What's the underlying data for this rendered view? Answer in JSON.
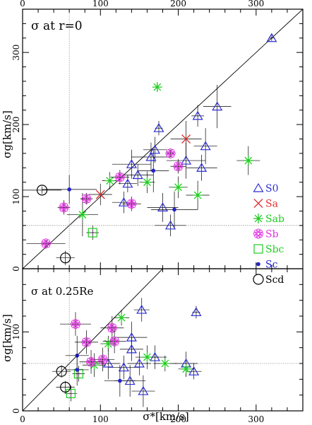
{
  "chart_data": [
    {
      "type": "scatter",
      "panel": "top",
      "annotation": "σ at r=0",
      "ylabel": "σg[km/s]",
      "xlim": [
        0,
        360
      ],
      "ylim": [
        0,
        360
      ],
      "x_ticks": [
        "0",
        "100",
        "200",
        "300"
      ],
      "y_ticks": [
        "0",
        "100",
        "200",
        "300"
      ],
      "reference_lines": {
        "diagonal": "y=x",
        "vertical_x": 60,
        "horizontal_y": 60
      },
      "legend": {
        "position": "right",
        "entries": [
          {
            "label": "S0",
            "marker": "triangle",
            "color": "#2d2dd4"
          },
          {
            "label": "Sa",
            "marker": "cross",
            "color": "#e03030"
          },
          {
            "label": "Sab",
            "marker": "asterisk",
            "color": "#22cc22"
          },
          {
            "label": "Sb",
            "marker": "flower",
            "color": "#e030e0"
          },
          {
            "label": "Sbc",
            "marker": "square",
            "color": "#22cc22"
          },
          {
            "label": "Sc",
            "marker": "dot",
            "color": "#2222cc"
          },
          {
            "label": "Scd",
            "marker": "circle",
            "color": "#000000"
          }
        ]
      },
      "points": [
        {
          "cls": "S0",
          "x": 320,
          "y": 320,
          "xe": 4,
          "ye": 4
        },
        {
          "cls": "S0",
          "x": 250,
          "y": 225,
          "xe": 18,
          "ye": 30
        },
        {
          "cls": "S0",
          "x": 225,
          "y": 212,
          "xe": 8,
          "ye": 15
        },
        {
          "cls": "S0",
          "x": 235,
          "y": 170,
          "xe": 15,
          "ye": 25
        },
        {
          "cls": "S0",
          "x": 210,
          "y": 150,
          "xe": 25,
          "ye": 25
        },
        {
          "cls": "S0",
          "x": 230,
          "y": 140,
          "xe": 20,
          "ye": 18
        },
        {
          "cls": "S0",
          "x": 175,
          "y": 195,
          "xe": 5,
          "ye": 10
        },
        {
          "cls": "S0",
          "x": 170,
          "y": 165,
          "xe": 15,
          "ye": 18
        },
        {
          "cls": "S0",
          "x": 165,
          "y": 155,
          "xe": 25,
          "ye": 20
        },
        {
          "cls": "S0",
          "x": 140,
          "y": 145,
          "xe": 25,
          "ye": 20
        },
        {
          "cls": "S0",
          "x": 148,
          "y": 130,
          "xe": 20,
          "ye": 15
        },
        {
          "cls": "S0",
          "x": 135,
          "y": 118,
          "xe": 12,
          "ye": 12
        },
        {
          "cls": "S0",
          "x": 130,
          "y": 92,
          "xe": 15,
          "ye": 15
        },
        {
          "cls": "S0",
          "x": 180,
          "y": 85,
          "xe": 20,
          "ye": 20
        },
        {
          "cls": "S0",
          "x": 190,
          "y": 60,
          "xe": 20,
          "ye": 15
        },
        {
          "cls": "Sa",
          "x": 210,
          "y": 180,
          "xe": 20,
          "ye": 25
        },
        {
          "cls": "Sa",
          "x": 100,
          "y": 103,
          "xe": 15,
          "ye": 15
        },
        {
          "cls": "Sab",
          "x": 173,
          "y": 252,
          "xe": 5,
          "ye": 5
        },
        {
          "cls": "Sab",
          "x": 290,
          "y": 150,
          "xe": 15,
          "ye": 20
        },
        {
          "cls": "Sab",
          "x": 225,
          "y": 102,
          "xe": 15,
          "ye": 20
        },
        {
          "cls": "Sab",
          "x": 200,
          "y": 113,
          "xe": 12,
          "ye": 15
        },
        {
          "cls": "Sab",
          "x": 112,
          "y": 122,
          "xe": 10,
          "ye": 12
        },
        {
          "cls": "Sab",
          "x": 77,
          "y": 75,
          "xe": 20,
          "ye": 30
        },
        {
          "cls": "Sab",
          "x": 160,
          "y": 120,
          "xe": 10,
          "ye": 15
        },
        {
          "cls": "Sb",
          "x": 190,
          "y": 160,
          "xe": 5,
          "ye": 5
        },
        {
          "cls": "Sb",
          "x": 200,
          "y": 142,
          "xe": 10,
          "ye": 10
        },
        {
          "cls": "Sb",
          "x": 125,
          "y": 127,
          "xe": 12,
          "ye": 10
        },
        {
          "cls": "Sb",
          "x": 140,
          "y": 90,
          "xe": 12,
          "ye": 10
        },
        {
          "cls": "Sb",
          "x": 82,
          "y": 97,
          "xe": 8,
          "ye": 8
        },
        {
          "cls": "Sb",
          "x": 53,
          "y": 85,
          "xe": 8,
          "ye": 10
        },
        {
          "cls": "Sb",
          "x": 30,
          "y": 35,
          "xe": 25,
          "ye": 5
        },
        {
          "cls": "Sbc",
          "x": 90,
          "y": 50,
          "xe": 8,
          "ye": 10
        },
        {
          "cls": "Sc",
          "x": 60,
          "y": 110,
          "xe": 35,
          "ye": 20
        },
        {
          "cls": "Sc",
          "x": 168,
          "y": 136,
          "xe": 20,
          "ye": 30
        },
        {
          "cls": "Sc",
          "x": 195,
          "y": 82,
          "xe": 30,
          "ye": 25
        },
        {
          "cls": "Scd",
          "x": 25,
          "y": 109,
          "xe": 25,
          "ye": 5
        },
        {
          "cls": "Scd",
          "x": 55,
          "y": 15,
          "xe": 12,
          "ye": 10
        }
      ]
    },
    {
      "type": "scatter",
      "panel": "bottom",
      "annotation": "σ at 0.25Re",
      "xlabel": "σ*[km/s]",
      "ylabel": "σg[km/s]",
      "xlim": [
        0,
        360
      ],
      "ylim": [
        0,
        180
      ],
      "x_ticks": [
        "0",
        "100",
        "200",
        "300"
      ],
      "y_ticks": [
        "0",
        "100"
      ],
      "reference_lines": {
        "diagonal": "y=x",
        "vertical_x": 60,
        "horizontal_y": 60
      },
      "points": [
        {
          "cls": "S0",
          "x": 223,
          "y": 125,
          "xe": 5,
          "ye": 8
        },
        {
          "cls": "S0",
          "x": 153,
          "y": 128,
          "xe": 10,
          "ye": 15
        },
        {
          "cls": "S0",
          "x": 140,
          "y": 93,
          "xe": 20,
          "ye": 20
        },
        {
          "cls": "S0",
          "x": 140,
          "y": 78,
          "xe": 15,
          "ye": 15
        },
        {
          "cls": "S0",
          "x": 130,
          "y": 55,
          "xe": 20,
          "ye": 15
        },
        {
          "cls": "S0",
          "x": 150,
          "y": 60,
          "xe": 15,
          "ye": 15
        },
        {
          "cls": "S0",
          "x": 170,
          "y": 68,
          "xe": 15,
          "ye": 15
        },
        {
          "cls": "S0",
          "x": 210,
          "y": 60,
          "xe": 15,
          "ye": 15
        },
        {
          "cls": "S0",
          "x": 220,
          "y": 50,
          "xe": 10,
          "ye": 10
        },
        {
          "cls": "S0",
          "x": 155,
          "y": 25,
          "xe": 15,
          "ye": 20
        },
        {
          "cls": "S0",
          "x": 138,
          "y": 38,
          "xe": 20,
          "ye": 20
        },
        {
          "cls": "S0",
          "x": 110,
          "y": 60,
          "xe": 15,
          "ye": 20
        },
        {
          "cls": "Sab",
          "x": 127,
          "y": 118,
          "xe": 10,
          "ye": 10
        },
        {
          "cls": "Sab",
          "x": 110,
          "y": 85,
          "xe": 10,
          "ye": 10
        },
        {
          "cls": "Sab",
          "x": 160,
          "y": 68,
          "xe": 15,
          "ye": 15
        },
        {
          "cls": "Sab",
          "x": 183,
          "y": 60,
          "xe": 15,
          "ye": 10
        },
        {
          "cls": "Sab",
          "x": 210,
          "y": 53,
          "xe": 10,
          "ye": 10
        },
        {
          "cls": "Sab",
          "x": 92,
          "y": 58,
          "xe": 15,
          "ye": 15
        },
        {
          "cls": "Sb",
          "x": 68,
          "y": 110,
          "xe": 20,
          "ye": 15
        },
        {
          "cls": "Sb",
          "x": 115,
          "y": 105,
          "xe": 15,
          "ye": 15
        },
        {
          "cls": "Sb",
          "x": 118,
          "y": 88,
          "xe": 15,
          "ye": 15
        },
        {
          "cls": "Sb",
          "x": 82,
          "y": 87,
          "xe": 15,
          "ye": 15
        },
        {
          "cls": "Sb",
          "x": 103,
          "y": 65,
          "xe": 15,
          "ye": 15
        },
        {
          "cls": "Sb",
          "x": 88,
          "y": 62,
          "xe": 15,
          "ye": 15
        },
        {
          "cls": "Sbc",
          "x": 72,
          "y": 47,
          "xe": 8,
          "ye": 10
        },
        {
          "cls": "Sbc",
          "x": 62,
          "y": 22,
          "xe": 8,
          "ye": 10
        },
        {
          "cls": "Sc",
          "x": 70,
          "y": 70,
          "xe": 15,
          "ye": 25
        },
        {
          "cls": "Sc",
          "x": 70,
          "y": 52,
          "xe": 15,
          "ye": 20
        },
        {
          "cls": "Sc",
          "x": 125,
          "y": 38,
          "xe": 20,
          "ye": 20
        },
        {
          "cls": "Scd",
          "x": 50,
          "y": 50,
          "xe": 12,
          "ye": 8
        },
        {
          "cls": "Scd",
          "x": 55,
          "y": 30,
          "xe": 12,
          "ye": 8
        }
      ]
    }
  ]
}
